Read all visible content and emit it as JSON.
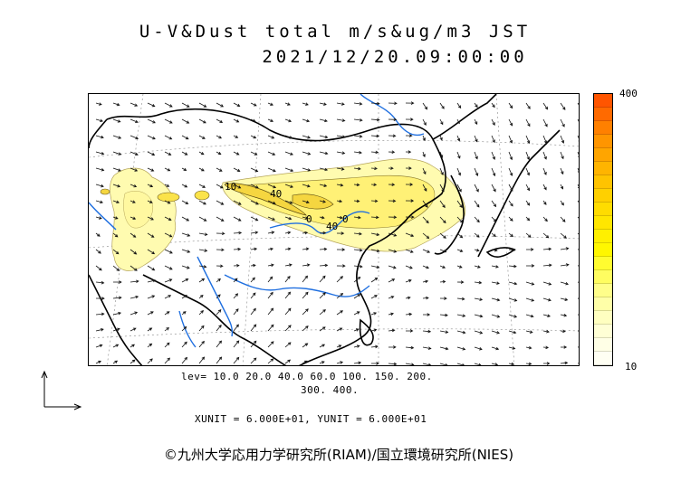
{
  "title": {
    "line1": "U-V&Dust total m/s&ug/m3 JST",
    "line2": "2021/12/20.09:00:00"
  },
  "colorbar": {
    "max_label": "400",
    "min_label": "10",
    "colors": [
      "#ff5500",
      "#ff6a00",
      "#ff8000",
      "#ff9500",
      "#ffa500",
      "#ffb400",
      "#ffc300",
      "#ffd000",
      "#ffdc00",
      "#ffe600",
      "#fff000",
      "#fff700",
      "#fffc30",
      "#fffd60",
      "#fffe8a",
      "#ffffa8",
      "#ffffc0",
      "#ffffd5",
      "#ffffe6",
      "#fffff3"
    ]
  },
  "contour_labels": [
    "10",
    "40",
    "0",
    "40",
    "0"
  ],
  "levels": {
    "line1": "lev= 10.0 20.0 40.0 60.0 100. 150. 200.",
    "line2": "300. 400."
  },
  "units": "XUNIT = 6.000E+01, YUNIT = 6.000E+01",
  "copyright": "©九州大学応用力学研究所(RIAM)/国立環境研究所(NIES)",
  "map": {
    "coast_color": "#000000",
    "river_color": "#1f6fe0",
    "dust_color_light": "#fffbb0",
    "dust_color_mid": "#fff176",
    "dust_color_strong": "#fbe34a"
  }
}
